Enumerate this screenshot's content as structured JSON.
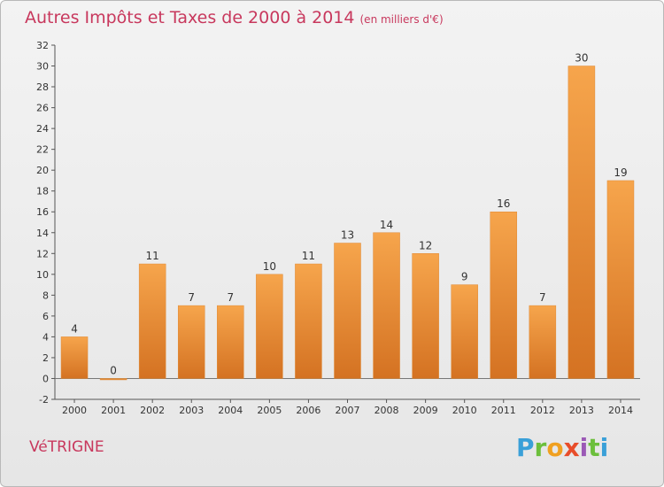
{
  "header": {
    "title": "Autres Impôts et Taxes de 2000 à 2014",
    "subtitle": "(en milliers d'€)"
  },
  "footer": {
    "town": "VéTRIGNE",
    "logo_text": "Proxiti"
  },
  "colors": {
    "title": "#c8385d",
    "bar_light": "#f6a54c",
    "bar_dark": "#d47222",
    "logo_letters": [
      "#3aa0d8",
      "#6cbf3c",
      "#f0a020",
      "#e84d2a",
      "#9b59b6",
      "#6cbf3c",
      "#3aa0d8"
    ]
  },
  "chart_data": {
    "type": "bar",
    "title": "Autres Impôts et Taxes de 2000 à 2014",
    "subtitle": "(en milliers d'€)",
    "categories": [
      "2000",
      "2001",
      "2002",
      "2003",
      "2004",
      "2005",
      "2006",
      "2007",
      "2008",
      "2009",
      "2010",
      "2011",
      "2012",
      "2013",
      "2014"
    ],
    "values": [
      4,
      0,
      11,
      7,
      7,
      10,
      11,
      13,
      14,
      12,
      9,
      16,
      7,
      30,
      19
    ],
    "ylim": [
      -2,
      32
    ],
    "yticks": [
      -2,
      0,
      2,
      4,
      6,
      8,
      10,
      12,
      14,
      16,
      18,
      20,
      22,
      24,
      26,
      28,
      30,
      32
    ],
    "grid": false,
    "legend": "none"
  }
}
